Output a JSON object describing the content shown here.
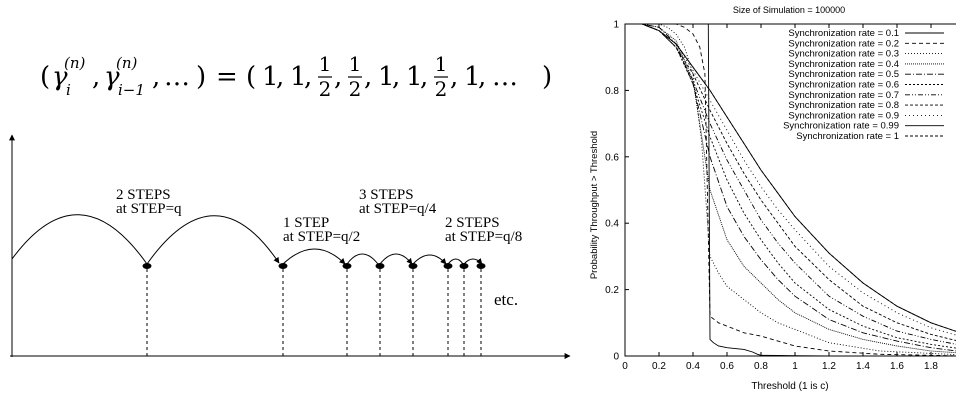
{
  "left_figure": {
    "equation": {
      "gamma_i_sub": "i",
      "gamma_prev_sub": "i−1",
      "superscript": "(n)",
      "ellipsis": "…",
      "rhs_values": [
        "1",
        "1",
        "1/2",
        "1/2",
        "1",
        "1",
        "1/2",
        "1",
        "…"
      ]
    },
    "step_labels": [
      {
        "line1": "2 STEPS",
        "line2": "at STEP=q"
      },
      {
        "line1": "1 STEP",
        "line2": "at STEP=q/2"
      },
      {
        "line1": "3 STEPS",
        "line2": "at STEP=q/4"
      },
      {
        "line1": "2 STEPS",
        "line2": "at STEP=q/8"
      }
    ],
    "etc_label": "etc."
  },
  "chart_data": {
    "type": "line",
    "title": "Size of Simulation = 100000",
    "xlabel": "Threshold (1 is c)",
    "ylabel": "Probability Throughput > Threshold",
    "xlim": [
      0,
      2
    ],
    "ylim": [
      0,
      1
    ],
    "x_ticks": [
      "0",
      "0.2",
      "0.4",
      "0.6",
      "0.8",
      "1",
      "1.2",
      "1.4",
      "1.6",
      "1.8",
      "2"
    ],
    "y_ticks": [
      "0",
      "0.2",
      "0.4",
      "0.6",
      "0.8",
      "1"
    ],
    "legend_position": "top-right",
    "series": [
      {
        "name": "Synchronization rate = 0.1",
        "dash": "",
        "x": [
          0,
          0.1,
          0.2,
          0.3,
          0.4,
          0.45,
          0.48,
          0.49,
          0.5,
          0.52,
          0.55,
          0.6,
          0.7,
          0.75,
          0.78,
          0.8,
          0.9,
          1.0,
          1.2,
          1.5,
          2.0
        ],
        "y": [
          1,
          1,
          1,
          1,
          1,
          1,
          1,
          1,
          0.05,
          0.04,
          0.03,
          0.025,
          0.02,
          0.012,
          0.005,
          0.002,
          0.0015,
          0.001,
          0,
          0,
          0
        ]
      },
      {
        "name": "Synchronization rate = 0.2",
        "dash": "4,3",
        "x": [
          0,
          0.1,
          0.2,
          0.3,
          0.35,
          0.4,
          0.44,
          0.47,
          0.5,
          0.55,
          0.6,
          0.7,
          0.8,
          0.9,
          1.0,
          1.2,
          1.5,
          2.0
        ],
        "y": [
          1,
          1,
          1,
          1,
          0.99,
          0.97,
          0.93,
          0.85,
          0.12,
          0.1,
          0.09,
          0.07,
          0.06,
          0.045,
          0.03,
          0.015,
          0.005,
          0
        ]
      },
      {
        "name": "Synchronization rate = 0.3",
        "dash": "1,2",
        "x": [
          0,
          0.1,
          0.2,
          0.25,
          0.3,
          0.35,
          0.4,
          0.45,
          0.5,
          0.55,
          0.6,
          0.7,
          0.8,
          0.9,
          1.0,
          1.2,
          1.5,
          2.0
        ],
        "y": [
          1,
          1,
          1,
          0.99,
          0.97,
          0.93,
          0.85,
          0.65,
          0.3,
          0.25,
          0.21,
          0.17,
          0.13,
          0.1,
          0.08,
          0.04,
          0.015,
          0.003
        ]
      },
      {
        "name": "Synchronization rate = 0.4",
        "dash": "1,1",
        "x": [
          0,
          0.1,
          0.2,
          0.3,
          0.4,
          0.5,
          0.6,
          0.7,
          0.8,
          0.9,
          1.0,
          1.2,
          1.4,
          1.6,
          1.8,
          2.0
        ],
        "y": [
          1,
          1,
          0.99,
          0.95,
          0.83,
          0.5,
          0.35,
          0.27,
          0.22,
          0.17,
          0.13,
          0.08,
          0.05,
          0.03,
          0.015,
          0.008
        ]
      },
      {
        "name": "Synchronization rate = 0.5",
        "dash": "6,2,1,2",
        "x": [
          0,
          0.1,
          0.2,
          0.3,
          0.4,
          0.5,
          0.6,
          0.7,
          0.8,
          0.9,
          1.0,
          1.2,
          1.4,
          1.6,
          1.8,
          2.0
        ],
        "y": [
          1,
          1,
          0.99,
          0.94,
          0.82,
          0.6,
          0.45,
          0.36,
          0.29,
          0.23,
          0.18,
          0.11,
          0.07,
          0.045,
          0.025,
          0.012
        ]
      },
      {
        "name": "Synchronization rate = 0.6",
        "dash": "2,2",
        "x": [
          0,
          0.1,
          0.2,
          0.3,
          0.4,
          0.5,
          0.6,
          0.7,
          0.8,
          0.9,
          1.0,
          1.2,
          1.4,
          1.6,
          1.8,
          2.0
        ],
        "y": [
          1,
          1,
          0.98,
          0.93,
          0.82,
          0.66,
          0.53,
          0.43,
          0.35,
          0.28,
          0.22,
          0.14,
          0.09,
          0.055,
          0.035,
          0.02
        ]
      },
      {
        "name": "Synchronization rate = 0.7",
        "dash": "5,2,1,2,1,2",
        "x": [
          0,
          0.1,
          0.2,
          0.3,
          0.4,
          0.5,
          0.6,
          0.7,
          0.8,
          0.9,
          1.0,
          1.2,
          1.4,
          1.6,
          1.8,
          2.0
        ],
        "y": [
          1,
          1,
          0.98,
          0.93,
          0.83,
          0.7,
          0.59,
          0.5,
          0.41,
          0.34,
          0.28,
          0.18,
          0.12,
          0.075,
          0.05,
          0.03
        ]
      },
      {
        "name": "Synchronization rate = 0.8",
        "dash": "3,2",
        "x": [
          0,
          0.1,
          0.2,
          0.3,
          0.4,
          0.5,
          0.6,
          0.7,
          0.8,
          0.9,
          1.0,
          1.2,
          1.4,
          1.6,
          1.8,
          2.0
        ],
        "y": [
          1,
          1,
          0.98,
          0.93,
          0.85,
          0.74,
          0.64,
          0.55,
          0.47,
          0.4,
          0.33,
          0.23,
          0.15,
          0.1,
          0.065,
          0.04
        ]
      },
      {
        "name": "Synchronization rate = 0.9",
        "dash": "1,3",
        "x": [
          0,
          0.1,
          0.2,
          0.3,
          0.4,
          0.5,
          0.6,
          0.7,
          0.8,
          0.9,
          1.0,
          1.2,
          1.4,
          1.6,
          1.8,
          2.0
        ],
        "y": [
          1,
          1,
          0.98,
          0.94,
          0.86,
          0.77,
          0.68,
          0.59,
          0.51,
          0.44,
          0.38,
          0.27,
          0.19,
          0.13,
          0.085,
          0.055
        ]
      },
      {
        "name": "Synchronization rate = 0.99",
        "dash": "",
        "x": [
          0,
          0.1,
          0.2,
          0.3,
          0.4,
          0.5,
          0.6,
          0.7,
          0.8,
          0.9,
          1.0,
          1.2,
          1.4,
          1.6,
          1.8,
          2.0
        ],
        "y": [
          1,
          1,
          0.98,
          0.94,
          0.87,
          0.8,
          0.72,
          0.64,
          0.56,
          0.49,
          0.42,
          0.31,
          0.22,
          0.15,
          0.1,
          0.065
        ]
      },
      {
        "name": "Synchronization rate = 1",
        "dash": "3,2",
        "x": [
          0,
          0.1,
          0.2,
          0.3,
          0.4,
          0.5,
          0.6,
          0.7,
          0.8,
          0.9,
          1.0,
          1.2,
          1.4,
          1.6,
          1.8,
          2.0
        ],
        "y": [
          1,
          1,
          0.98,
          0.94,
          0.87,
          0.8,
          0.72,
          0.64,
          0.56,
          0.49,
          0.42,
          0.31,
          0.22,
          0.15,
          0.1,
          0.065
        ]
      }
    ]
  }
}
